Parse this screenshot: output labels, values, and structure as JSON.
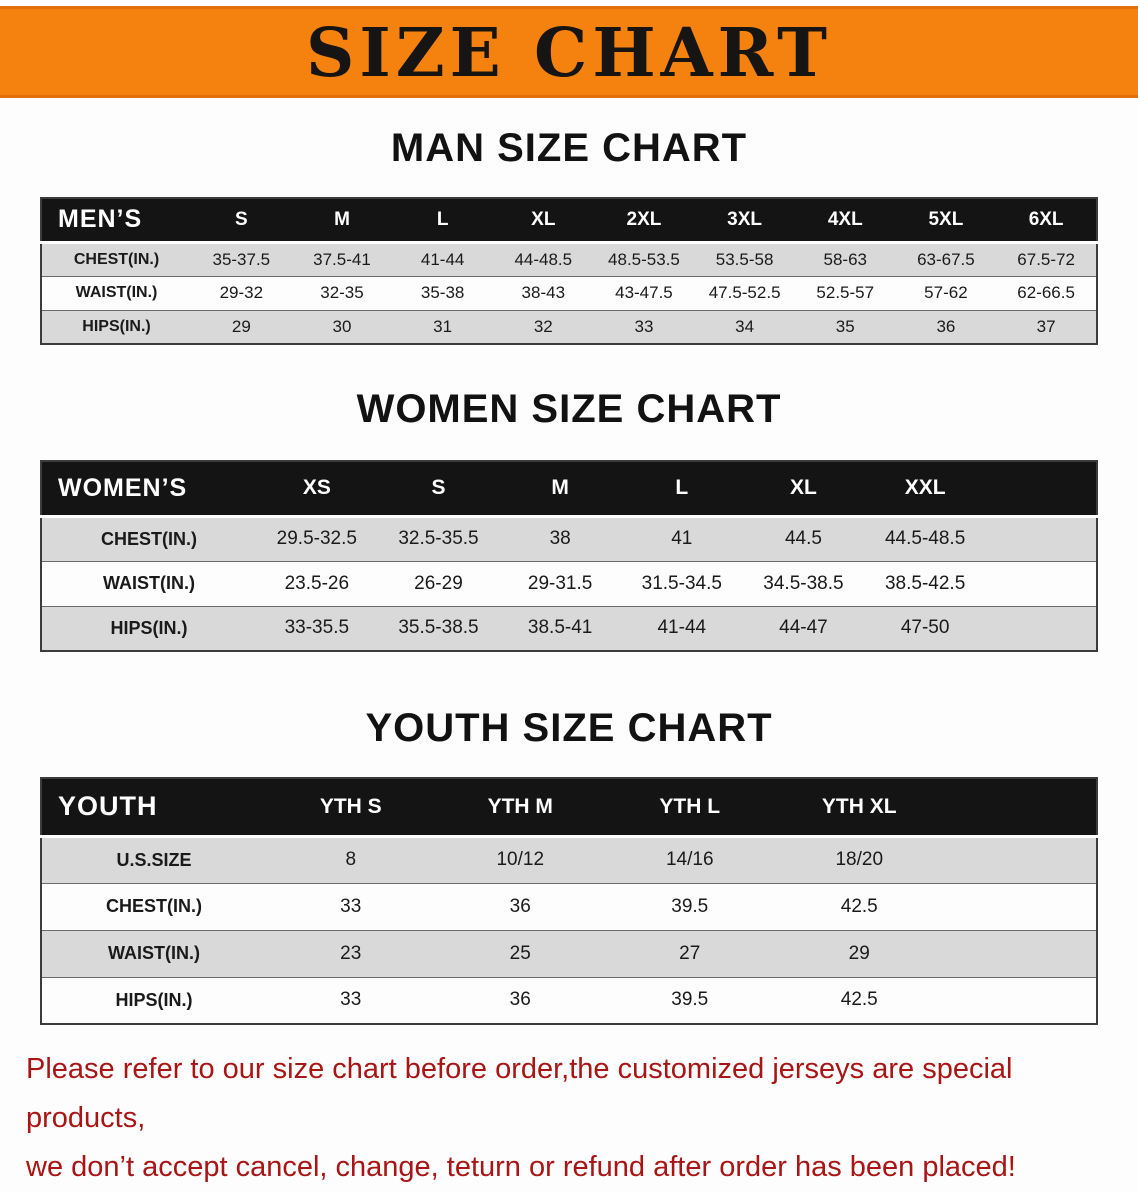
{
  "banner": {
    "title": "SIZE CHART"
  },
  "mens": {
    "heading": "MAN SIZE CHART",
    "table": {
      "corner_label": "MEN’S",
      "columns": [
        "S",
        "M",
        "L",
        "XL",
        "2XL",
        "3XL",
        "4XL",
        "5XL",
        "6XL"
      ],
      "rows": [
        {
          "label": "CHEST(IN.)",
          "values": [
            "35-37.5",
            "37.5-41",
            "41-44",
            "44-48.5",
            "48.5-53.5",
            "53.5-58",
            "58-63",
            "63-67.5",
            "67.5-72"
          ]
        },
        {
          "label": "WAIST(IN.)",
          "values": [
            "29-32",
            "32-35",
            "35-38",
            "38-43",
            "43-47.5",
            "47.5-52.5",
            "52.5-57",
            "57-62",
            "62-66.5"
          ]
        },
        {
          "label": "HIPS(IN.)",
          "values": [
            "29",
            "30",
            "31",
            "32",
            "33",
            "34",
            "35",
            "36",
            "37"
          ]
        }
      ]
    }
  },
  "womens": {
    "heading": "WOMEN SIZE CHART",
    "table": {
      "corner_label": "WOMEN’S",
      "columns": [
        "XS",
        "S",
        "M",
        "L",
        "XL",
        "XXL"
      ],
      "rows": [
        {
          "label": "CHEST(IN.)",
          "values": [
            "29.5-32.5",
            "32.5-35.5",
            "38",
            "41",
            "44.5",
            "44.5-48.5"
          ]
        },
        {
          "label": "WAIST(IN.)",
          "values": [
            "23.5-26",
            "26-29",
            "29-31.5",
            "31.5-34.5",
            "34.5-38.5",
            "38.5-42.5"
          ]
        },
        {
          "label": "HIPS(IN.)",
          "values": [
            "33-35.5",
            "35.5-38.5",
            "38.5-41",
            "41-44",
            "44-47",
            "47-50"
          ]
        }
      ]
    }
  },
  "youth": {
    "heading": "YOUTH SIZE CHART",
    "table": {
      "corner_label": "YOUTH",
      "columns": [
        "YTH S",
        "YTH M",
        "YTH L",
        "YTH XL"
      ],
      "rows": [
        {
          "label": "U.S.SIZE",
          "values": [
            "8",
            "10/12",
            "14/16",
            "18/20"
          ]
        },
        {
          "label": "CHEST(IN.)",
          "values": [
            "33",
            "36",
            "39.5",
            "42.5"
          ]
        },
        {
          "label": "WAIST(IN.)",
          "values": [
            "23",
            "25",
            "27",
            "29"
          ]
        },
        {
          "label": "HIPS(IN.)",
          "values": [
            "33",
            "36",
            "39.5",
            "42.5"
          ]
        }
      ]
    }
  },
  "footer": {
    "line1": "Please refer to our size chart before order,the customized jerseys are special products,",
    "line2": "we don’t accept cancel, change, teturn or refund after order has been placed!"
  },
  "colors": {
    "banner_bg": "#f5820e",
    "table_header_bg": "#141414",
    "row_gray": "#d9d9d9",
    "row_white": "#fdfdfd",
    "notice_red": "#a91414"
  }
}
